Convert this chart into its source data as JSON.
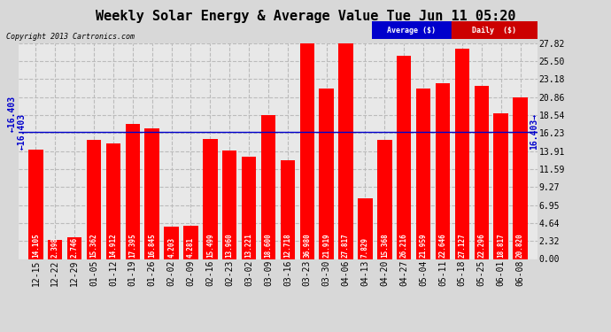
{
  "title": "Weekly Solar Energy & Average Value Tue Jun 11 05:20",
  "copyright": "Copyright 2013 Cartronics.com",
  "categories": [
    "12-15",
    "12-22",
    "12-29",
    "01-05",
    "01-12",
    "01-19",
    "01-26",
    "02-02",
    "02-09",
    "02-16",
    "02-23",
    "03-02",
    "03-09",
    "03-16",
    "03-23",
    "03-30",
    "04-06",
    "04-13",
    "04-20",
    "04-27",
    "05-04",
    "05-11",
    "05-18",
    "05-25",
    "06-01",
    "06-08"
  ],
  "values": [
    14.105,
    2.398,
    2.746,
    15.362,
    14.912,
    17.395,
    16.845,
    4.203,
    4.281,
    15.499,
    13.96,
    13.221,
    18.6,
    12.718,
    36.98,
    21.919,
    27.817,
    7.829,
    15.368,
    26.216,
    21.959,
    22.646,
    27.127,
    22.296,
    18.817,
    20.82
  ],
  "average": 16.403,
  "bar_color": "#ff0000",
  "average_line_color": "#0000cc",
  "background_color": "#d8d8d8",
  "plot_bg_color": "#e8e8e8",
  "yticks": [
    0.0,
    2.32,
    4.64,
    6.95,
    9.27,
    11.59,
    13.91,
    16.23,
    18.54,
    20.86,
    23.18,
    25.5,
    27.82
  ],
  "legend_avg_bg": "#0000cc",
  "legend_daily_bg": "#cc0000",
  "avg_label_color": "#0000cc",
  "title_fontsize": 11,
  "tick_fontsize": 7,
  "bar_label_fontsize": 5.5,
  "avg_text_fontsize": 7,
  "copyright_fontsize": 6
}
